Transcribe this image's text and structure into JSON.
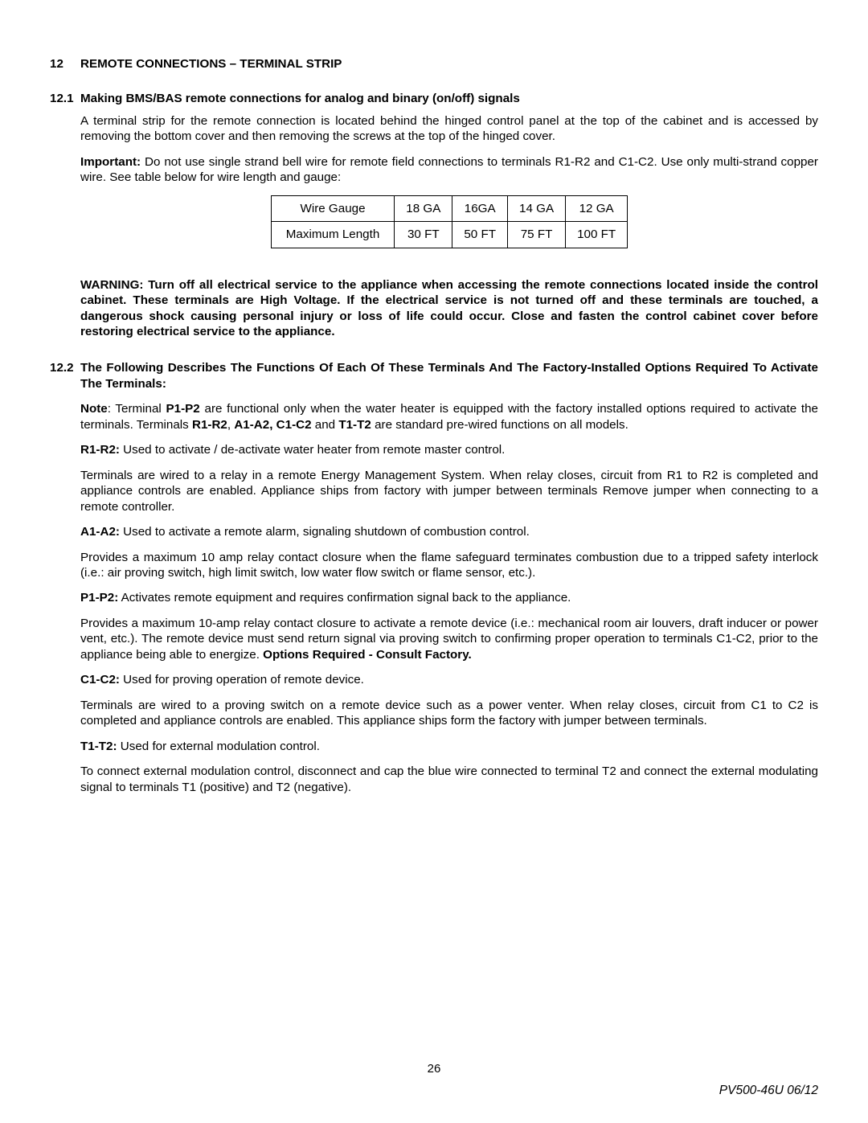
{
  "section": {
    "number": "12",
    "title": "REMOTE CONNECTIONS – TERMINAL STRIP"
  },
  "sub1": {
    "number": "12.1",
    "title": "Making BMS/BAS remote connections for analog and binary (on/off) signals",
    "p1": "A terminal strip for the remote connection is located behind the hinged control panel at the top of the cabinet and is accessed by removing the bottom cover and then removing the screws at the top of the hinged cover.",
    "imp_label": "Important:",
    "imp_text": " Do not use single strand bell wire for remote field connections to terminals R1-R2 and C1-C2. Use only multi-strand copper wire. See table below for wire length and gauge:"
  },
  "table": {
    "r1": [
      "Wire Gauge",
      "18 GA",
      "16GA",
      "14 GA",
      "12 GA"
    ],
    "r2": [
      "Maximum Length",
      "30 FT",
      "50 FT",
      "75 FT",
      "100 FT"
    ]
  },
  "warning": "WARNING: Turn off all electrical service to the appliance when accessing the remote connections located inside the control cabinet. These terminals are High Voltage. If the electrical service is not turned off and these terminals are touched, a dangerous shock causing personal injury or loss of life could occur. Close and fasten the control cabinet cover before restoring electrical service to the appliance.",
  "sub2": {
    "number": "12.2",
    "title": "The Following Describes The Functions Of Each Of These Terminals And The Factory-Installed Options Required To Activate The Terminals:",
    "note_label": "Note",
    "note_t1": ": Terminal ",
    "note_p1p2": "P1-P2",
    "note_t2": " are functional only when the water heater is equipped with the factory installed options required to activate the terminals. Terminals ",
    "note_r1r2": "R1-R2",
    "note_t3": ", ",
    "note_a1a2": "A1-A2, C1-C2",
    "note_t4": " and ",
    "note_t1t2": "T1-T2",
    "note_t5": " are standard pre-wired functions on all models.",
    "r1r2_label": "R1-R2:",
    "r1r2_t": " Used to activate / de-activate water heater from remote master control.",
    "r1r2_p": "Terminals are wired to a relay in a remote Energy Management System. When relay closes, circuit from R1 to R2 is completed and appliance controls are enabled. Appliance ships from factory with jumper between terminals Remove jumper when connecting to a remote controller.",
    "a1a2_label": "A1-A2:",
    "a1a2_t": " Used to activate a remote alarm, signaling shutdown of combustion control.",
    "a1a2_p": "Provides a maximum 10 amp relay contact closure when the flame safeguard terminates combustion due to a tripped safety interlock (i.e.: air proving switch, high limit switch, low water flow switch or flame sensor, etc.).",
    "p1p2_label": "P1-P2:",
    "p1p2_t": " Activates remote equipment and requires confirmation signal back to the appliance.",
    "p1p2_p_a": "Provides a maximum 10-amp relay contact closure to activate a remote device (i.e.: mechanical room air louvers, draft inducer or power vent, etc.). The remote device must send return signal via proving switch to confirming proper operation to terminals C1-C2, prior to the appliance being able to energize. ",
    "p1p2_p_b": "Options Required - Consult Factory.",
    "c1c2_label": "C1-C2:",
    "c1c2_t": " Used for proving operation of remote device.",
    "c1c2_p": "Terminals are wired to a proving switch on a remote device such as a power venter. When relay closes, circuit from C1 to C2 is completed and appliance controls are enabled. This appliance ships form the factory with jumper between terminals.",
    "t1t2_label": "T1-T2:",
    "t1t2_t": " Used for external modulation control.",
    "t1t2_p": "To connect external modulation control, disconnect and cap the blue wire connected to terminal T2 and connect the external modulating signal to terminals T1 (positive) and T2 (negative)."
  },
  "page_number": "26",
  "doc_id": "PV500-46U  06/12"
}
